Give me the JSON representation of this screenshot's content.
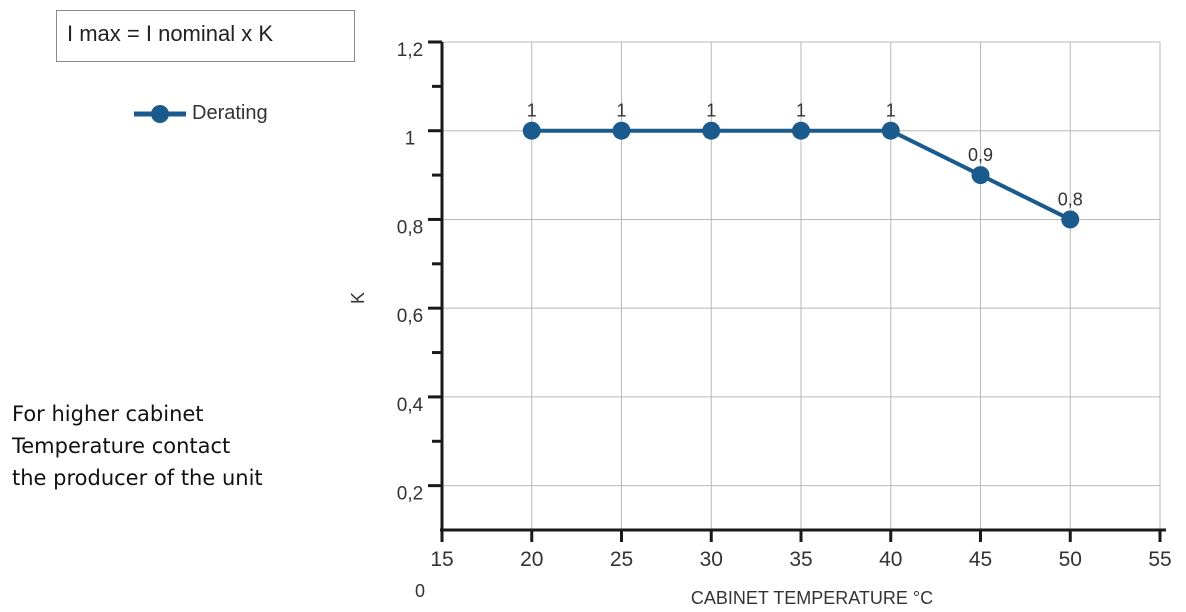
{
  "formula": "I max = I nominal x K",
  "note_lines": [
    "For higher cabinet",
    "Temperature contact",
    "the producer of the unit"
  ],
  "origin_label": "0",
  "chart_data": {
    "type": "line",
    "title": "",
    "xlabel": "CABINET TEMPERATURE °C",
    "ylabel": "K",
    "xlim": [
      15,
      55
    ],
    "ylim": [
      0.1,
      1.2
    ],
    "x_ticks": [
      15,
      20,
      25,
      30,
      35,
      40,
      45,
      50,
      55
    ],
    "x_tick_labels": [
      "15",
      "20",
      "25",
      "30",
      "35",
      "40",
      "45",
      "50",
      "55"
    ],
    "y_ticks": [
      0.2,
      0.4,
      0.6,
      0.8,
      1.0,
      1.2
    ],
    "y_tick_labels": [
      "0,2",
      "0,4",
      "0,6",
      "0,8",
      "1",
      "1,2"
    ],
    "grid": true,
    "legend_position": "left",
    "series": [
      {
        "name": "Derating",
        "color": "#1b5a8c",
        "x": [
          20,
          25,
          30,
          35,
          40,
          45,
          50
        ],
        "y": [
          1,
          1,
          1,
          1,
          1,
          0.9,
          0.8
        ],
        "data_labels": [
          "1",
          "1",
          "1",
          "1",
          "1",
          "0,9",
          "0,8"
        ]
      }
    ]
  }
}
